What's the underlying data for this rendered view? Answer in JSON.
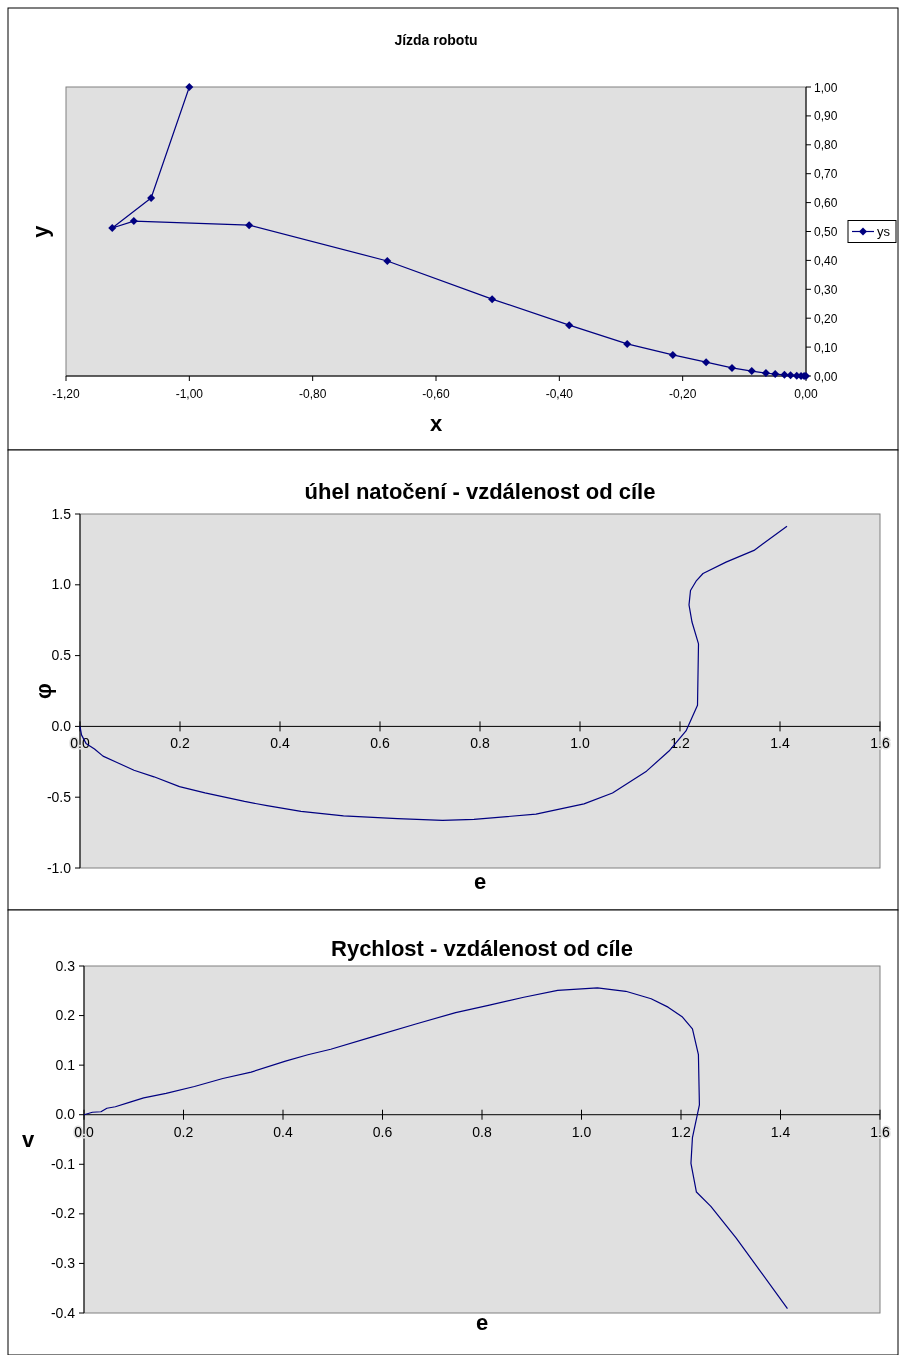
{
  "chart_data": [
    {
      "type": "line",
      "title": "Jízda robotu",
      "xlabel": "x",
      "ylabel": "y",
      "marker": "diamond",
      "legend": "right",
      "grid": false,
      "xlim": [
        -1.2,
        0
      ],
      "xticks": [
        {
          "value": -1.2,
          "label": "-1,20"
        },
        {
          "value": -1,
          "label": "-1,00"
        },
        {
          "value": -0.8,
          "label": "-0,80"
        },
        {
          "value": -0.6,
          "label": "-0,60"
        },
        {
          "value": -0.4,
          "label": "-0,40"
        },
        {
          "value": -0.2,
          "label": "-0,20"
        },
        {
          "value": 0,
          "label": "0,00"
        }
      ],
      "ylim": [
        0,
        1
      ],
      "yticks": [
        {
          "value": 0,
          "label": "0,00"
        },
        {
          "value": 0.1,
          "label": "0,10"
        },
        {
          "value": 0.2,
          "label": "0,20"
        },
        {
          "value": 0.3,
          "label": "0,30"
        },
        {
          "value": 0.4,
          "label": "0,40"
        },
        {
          "value": 0.5,
          "label": "0,50"
        },
        {
          "value": 0.6,
          "label": "0,60"
        },
        {
          "value": 0.7,
          "label": "0,70"
        },
        {
          "value": 0.8,
          "label": "0,80"
        },
        {
          "value": 0.9,
          "label": "0,90"
        },
        {
          "value": 1,
          "label": "1,00"
        }
      ],
      "series": [
        {
          "name": "ys",
          "color": "#000080",
          "x": [
            -1,
            -1.062,
            -1.125,
            -1.09,
            -0.903,
            -0.679,
            -0.509,
            -0.384,
            -0.29,
            -0.216,
            -0.162,
            -0.12,
            -0.088,
            -0.065,
            -0.05,
            -0.035,
            -0.025,
            -0.015,
            -0.008,
            -0.003,
            0
          ],
          "values": [
            1,
            0.616,
            0.512,
            0.536,
            0.522,
            0.398,
            0.266,
            0.176,
            0.111,
            0.073,
            0.048,
            0.028,
            0.017,
            0.01,
            0.007,
            0.004,
            0.003,
            0.001,
            0,
            0,
            0
          ]
        }
      ]
    },
    {
      "type": "line",
      "title": "úhel natočení - vzdálenost od cíle",
      "xlabel": "e",
      "ylabel": "φ",
      "marker": "none",
      "legend": false,
      "grid": false,
      "xlim": [
        0,
        1.6
      ],
      "xticks": [
        {
          "value": 0,
          "label": "0.0"
        },
        {
          "value": 0.2,
          "label": "0.2"
        },
        {
          "value": 0.4,
          "label": "0.4"
        },
        {
          "value": 0.6,
          "label": "0.6"
        },
        {
          "value": 0.8,
          "label": "0.8"
        },
        {
          "value": 1,
          "label": "1.0"
        },
        {
          "value": 1.2,
          "label": "1.2"
        },
        {
          "value": 1.4,
          "label": "1.4"
        },
        {
          "value": 1.6,
          "label": "1.6"
        }
      ],
      "ylim": [
        -1,
        1.5
      ],
      "yticks": [
        {
          "value": -1,
          "label": "-1.0"
        },
        -0.5,
        {
          "value": 0,
          "label": "0.0"
        },
        0.5,
        {
          "value": 1,
          "label": "1.0"
        },
        1.5
      ],
      "series": [
        {
          "color": "#000080",
          "x": [
            0,
            0.003,
            0.012,
            0.029,
            0.046,
            0.074,
            0.108,
            0.148,
            0.199,
            0.25,
            0.329,
            0.374,
            0.442,
            0.527,
            0.635,
            0.725,
            0.788,
            0.912,
            1.008,
            1.065,
            1.133,
            1.178,
            1.212,
            1.235,
            1.237,
            1.224,
            1.218,
            1.221,
            1.233,
            1.246,
            1.292,
            1.348,
            1.414
          ],
          "values": [
            0,
            -0.06,
            -0.12,
            -0.16,
            -0.21,
            -0.255,
            -0.31,
            -0.356,
            -0.425,
            -0.47,
            -0.53,
            -0.56,
            -0.6,
            -0.632,
            -0.652,
            -0.664,
            -0.656,
            -0.62,
            -0.547,
            -0.47,
            -0.316,
            -0.174,
            -0.032,
            0.15,
            0.583,
            0.737,
            0.858,
            0.96,
            1.03,
            1.08,
            1.16,
            1.243,
            1.413
          ]
        }
      ]
    },
    {
      "type": "line",
      "title": "Rychlost - vzdálenost od cíle",
      "xlabel": "e",
      "ylabel": "v",
      "marker": "none",
      "legend": false,
      "grid": false,
      "xlim": [
        0,
        1.6
      ],
      "xticks": [
        {
          "value": 0,
          "label": "0.0"
        },
        {
          "value": 0.2,
          "label": "0.2"
        },
        {
          "value": 0.4,
          "label": "0.4"
        },
        {
          "value": 0.6,
          "label": "0.6"
        },
        {
          "value": 0.8,
          "label": "0.8"
        },
        {
          "value": 1,
          "label": "1.0"
        },
        {
          "value": 1.2,
          "label": "1.2"
        },
        {
          "value": 1.4,
          "label": "1.4"
        },
        {
          "value": 1.6,
          "label": "1.6"
        }
      ],
      "ylim": [
        -0.4,
        0.3
      ],
      "yticks": [
        -0.4,
        -0.3,
        -0.2,
        -0.1,
        {
          "value": 0,
          "label": "0.0"
        },
        0.1,
        0.2,
        0.3
      ],
      "series": [
        {
          "color": "#000080",
          "x": [
            0,
            0.017,
            0.034,
            0.046,
            0.063,
            0.091,
            0.12,
            0.165,
            0.222,
            0.279,
            0.336,
            0.405,
            0.45,
            0.496,
            0.576,
            0.667,
            0.747,
            0.815,
            0.884,
            0.952,
            1.032,
            1.089,
            1.14,
            1.174,
            1.203,
            1.223,
            1.235,
            1.237,
            1.223,
            1.22,
            1.231,
            1.26,
            1.311,
            1.414
          ],
          "values": [
            0,
            0.005,
            0.006,
            0.013,
            0.016,
            0.025,
            0.034,
            0.043,
            0.057,
            0.073,
            0.086,
            0.108,
            0.121,
            0.132,
            0.156,
            0.183,
            0.206,
            0.221,
            0.237,
            0.251,
            0.256,
            0.249,
            0.234,
            0.217,
            0.197,
            0.173,
            0.121,
            0.02,
            -0.046,
            -0.098,
            -0.156,
            -0.185,
            -0.249,
            -0.391
          ]
        }
      ]
    }
  ]
}
